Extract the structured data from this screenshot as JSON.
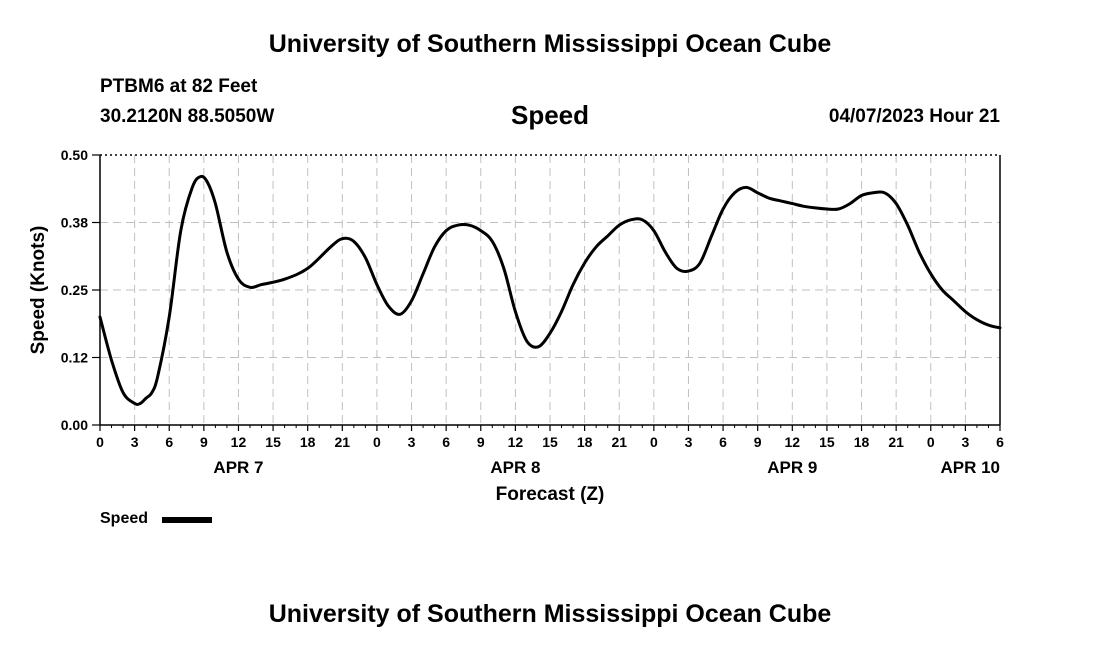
{
  "header": {
    "title_top": "University of Southern Mississippi Ocean Cube",
    "station": "PTBM6 at 82 Feet",
    "coords": "30.2120N  88.5050W",
    "plot_title": "Speed",
    "datetime": "04/07/2023 Hour 21",
    "title_bottom": "University of Southern Mississippi Ocean Cube"
  },
  "legend": {
    "label": "Speed"
  },
  "chart_data": {
    "type": "line",
    "title": "Speed",
    "ylabel": "Speed (Knots)",
    "xlabel": "Forecast (Z)",
    "ylim": [
      0,
      0.5
    ],
    "yticks": [
      "0.00",
      "0.12",
      "0.25",
      "0.38",
      "0.50"
    ],
    "xlim": [
      0,
      78
    ],
    "xtick_step_hours": 3,
    "xtick_labels": [
      "0",
      "3",
      "6",
      "9",
      "12",
      "15",
      "18",
      "21",
      "0",
      "3",
      "6",
      "9",
      "12",
      "15",
      "18",
      "21",
      "0",
      "3",
      "6",
      "9",
      "12",
      "15",
      "18",
      "21",
      "0",
      "3",
      "6"
    ],
    "date_labels": [
      {
        "hour": 12,
        "label": "APR 7"
      },
      {
        "hour": 36,
        "label": "APR 8"
      },
      {
        "hour": 60,
        "label": "APR 9"
      },
      {
        "hour": 84,
        "label": "APR 10"
      }
    ],
    "grid": true,
    "legend_position": "bottom-left",
    "series": [
      {
        "name": "Speed",
        "color": "#000000",
        "x": [
          0,
          1,
          2,
          3,
          3.5,
          4,
          4.5,
          5,
          6,
          7,
          8,
          8.7,
          9.3,
          10,
          11,
          12,
          13,
          14,
          16,
          18,
          20,
          21,
          22,
          23,
          24,
          25,
          26,
          27,
          28,
          29,
          30,
          31,
          32,
          33,
          34,
          35,
          36,
          37,
          38,
          39,
          40,
          41,
          42,
          43,
          44,
          45,
          46,
          47,
          48,
          49,
          50,
          51,
          52,
          53,
          54,
          55,
          56,
          57,
          58,
          59,
          60,
          61,
          62,
          63,
          64,
          65,
          66,
          67,
          68,
          69,
          70,
          71,
          72,
          73,
          74,
          75,
          76,
          77,
          78
        ],
        "values": [
          0.2,
          0.12,
          0.06,
          0.04,
          0.04,
          0.05,
          0.06,
          0.09,
          0.2,
          0.36,
          0.44,
          0.46,
          0.45,
          0.41,
          0.32,
          0.27,
          0.255,
          0.26,
          0.27,
          0.29,
          0.33,
          0.345,
          0.34,
          0.31,
          0.26,
          0.22,
          0.205,
          0.23,
          0.28,
          0.33,
          0.36,
          0.37,
          0.37,
          0.36,
          0.34,
          0.29,
          0.21,
          0.155,
          0.145,
          0.17,
          0.21,
          0.26,
          0.3,
          0.33,
          0.35,
          0.37,
          0.38,
          0.38,
          0.36,
          0.32,
          0.29,
          0.285,
          0.3,
          0.35,
          0.4,
          0.43,
          0.44,
          0.43,
          0.42,
          0.415,
          0.41,
          0.405,
          0.402,
          0.4,
          0.4,
          0.41,
          0.425,
          0.43,
          0.43,
          0.41,
          0.37,
          0.32,
          0.28,
          0.25,
          0.23,
          0.21,
          0.195,
          0.185,
          0.18
        ]
      }
    ]
  }
}
